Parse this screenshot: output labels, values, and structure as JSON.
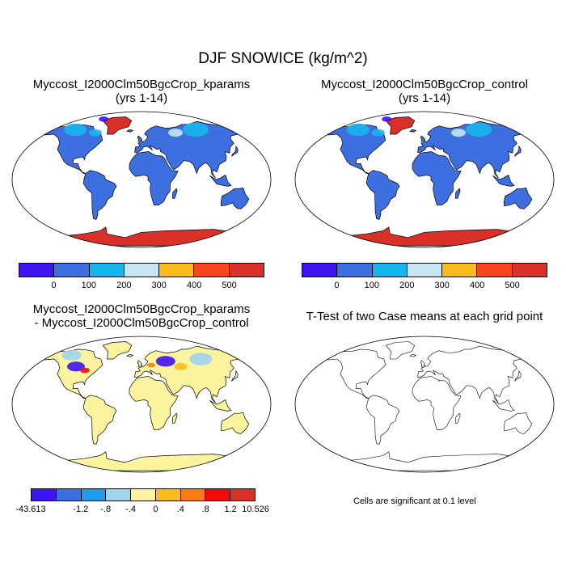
{
  "figure": {
    "title": "DJF SNOWICE (kg/m^2)"
  },
  "panels": [
    {
      "id": "kparams",
      "title_line1": "Myccost_I2000Clm50BgcCrop_kparams",
      "title_line2": "(yrs 1-14)"
    },
    {
      "id": "control",
      "title_line1": "Myccost_I2000Clm50BgcCrop_control",
      "title_line2": "(yrs 1-14)"
    },
    {
      "id": "difference",
      "title_line1": "Myccost_I2000Clm50BgcCrop_kparams",
      "title_line2": "- Myccost_I2000Clm50BgcCrop_control"
    },
    {
      "id": "ttest",
      "title_line1": "T-Test of two Case means at each grid point",
      "note": "Cells are significant at 0.1 level"
    }
  ],
  "colorbars": {
    "abs": {
      "colors": [
        "#3e14f2",
        "#3d6fe0",
        "#17b5ee",
        "#c5e6f2",
        "#fbbb1c",
        "#f9441c",
        "#d9302a"
      ],
      "labels": [
        "0",
        "100",
        "200",
        "300",
        "400",
        "500"
      ]
    },
    "diff": {
      "colors": [
        "#3e14f2",
        "#3d6fe0",
        "#1f9ded",
        "#9fd3ee",
        "#fbf39d",
        "#fbbb1c",
        "#f97b14",
        "#f50a0a",
        "#d9302a"
      ],
      "labels": [
        "-43.613",
        "-1.2",
        "-.8",
        "-.4",
        "0",
        ".4",
        ".8",
        "1.2",
        "10.526"
      ]
    }
  },
  "map_colors": {
    "abs_land": "#3d6fe0",
    "abs_ice": "#d9302a",
    "diff_land": "#fbf39d"
  }
}
